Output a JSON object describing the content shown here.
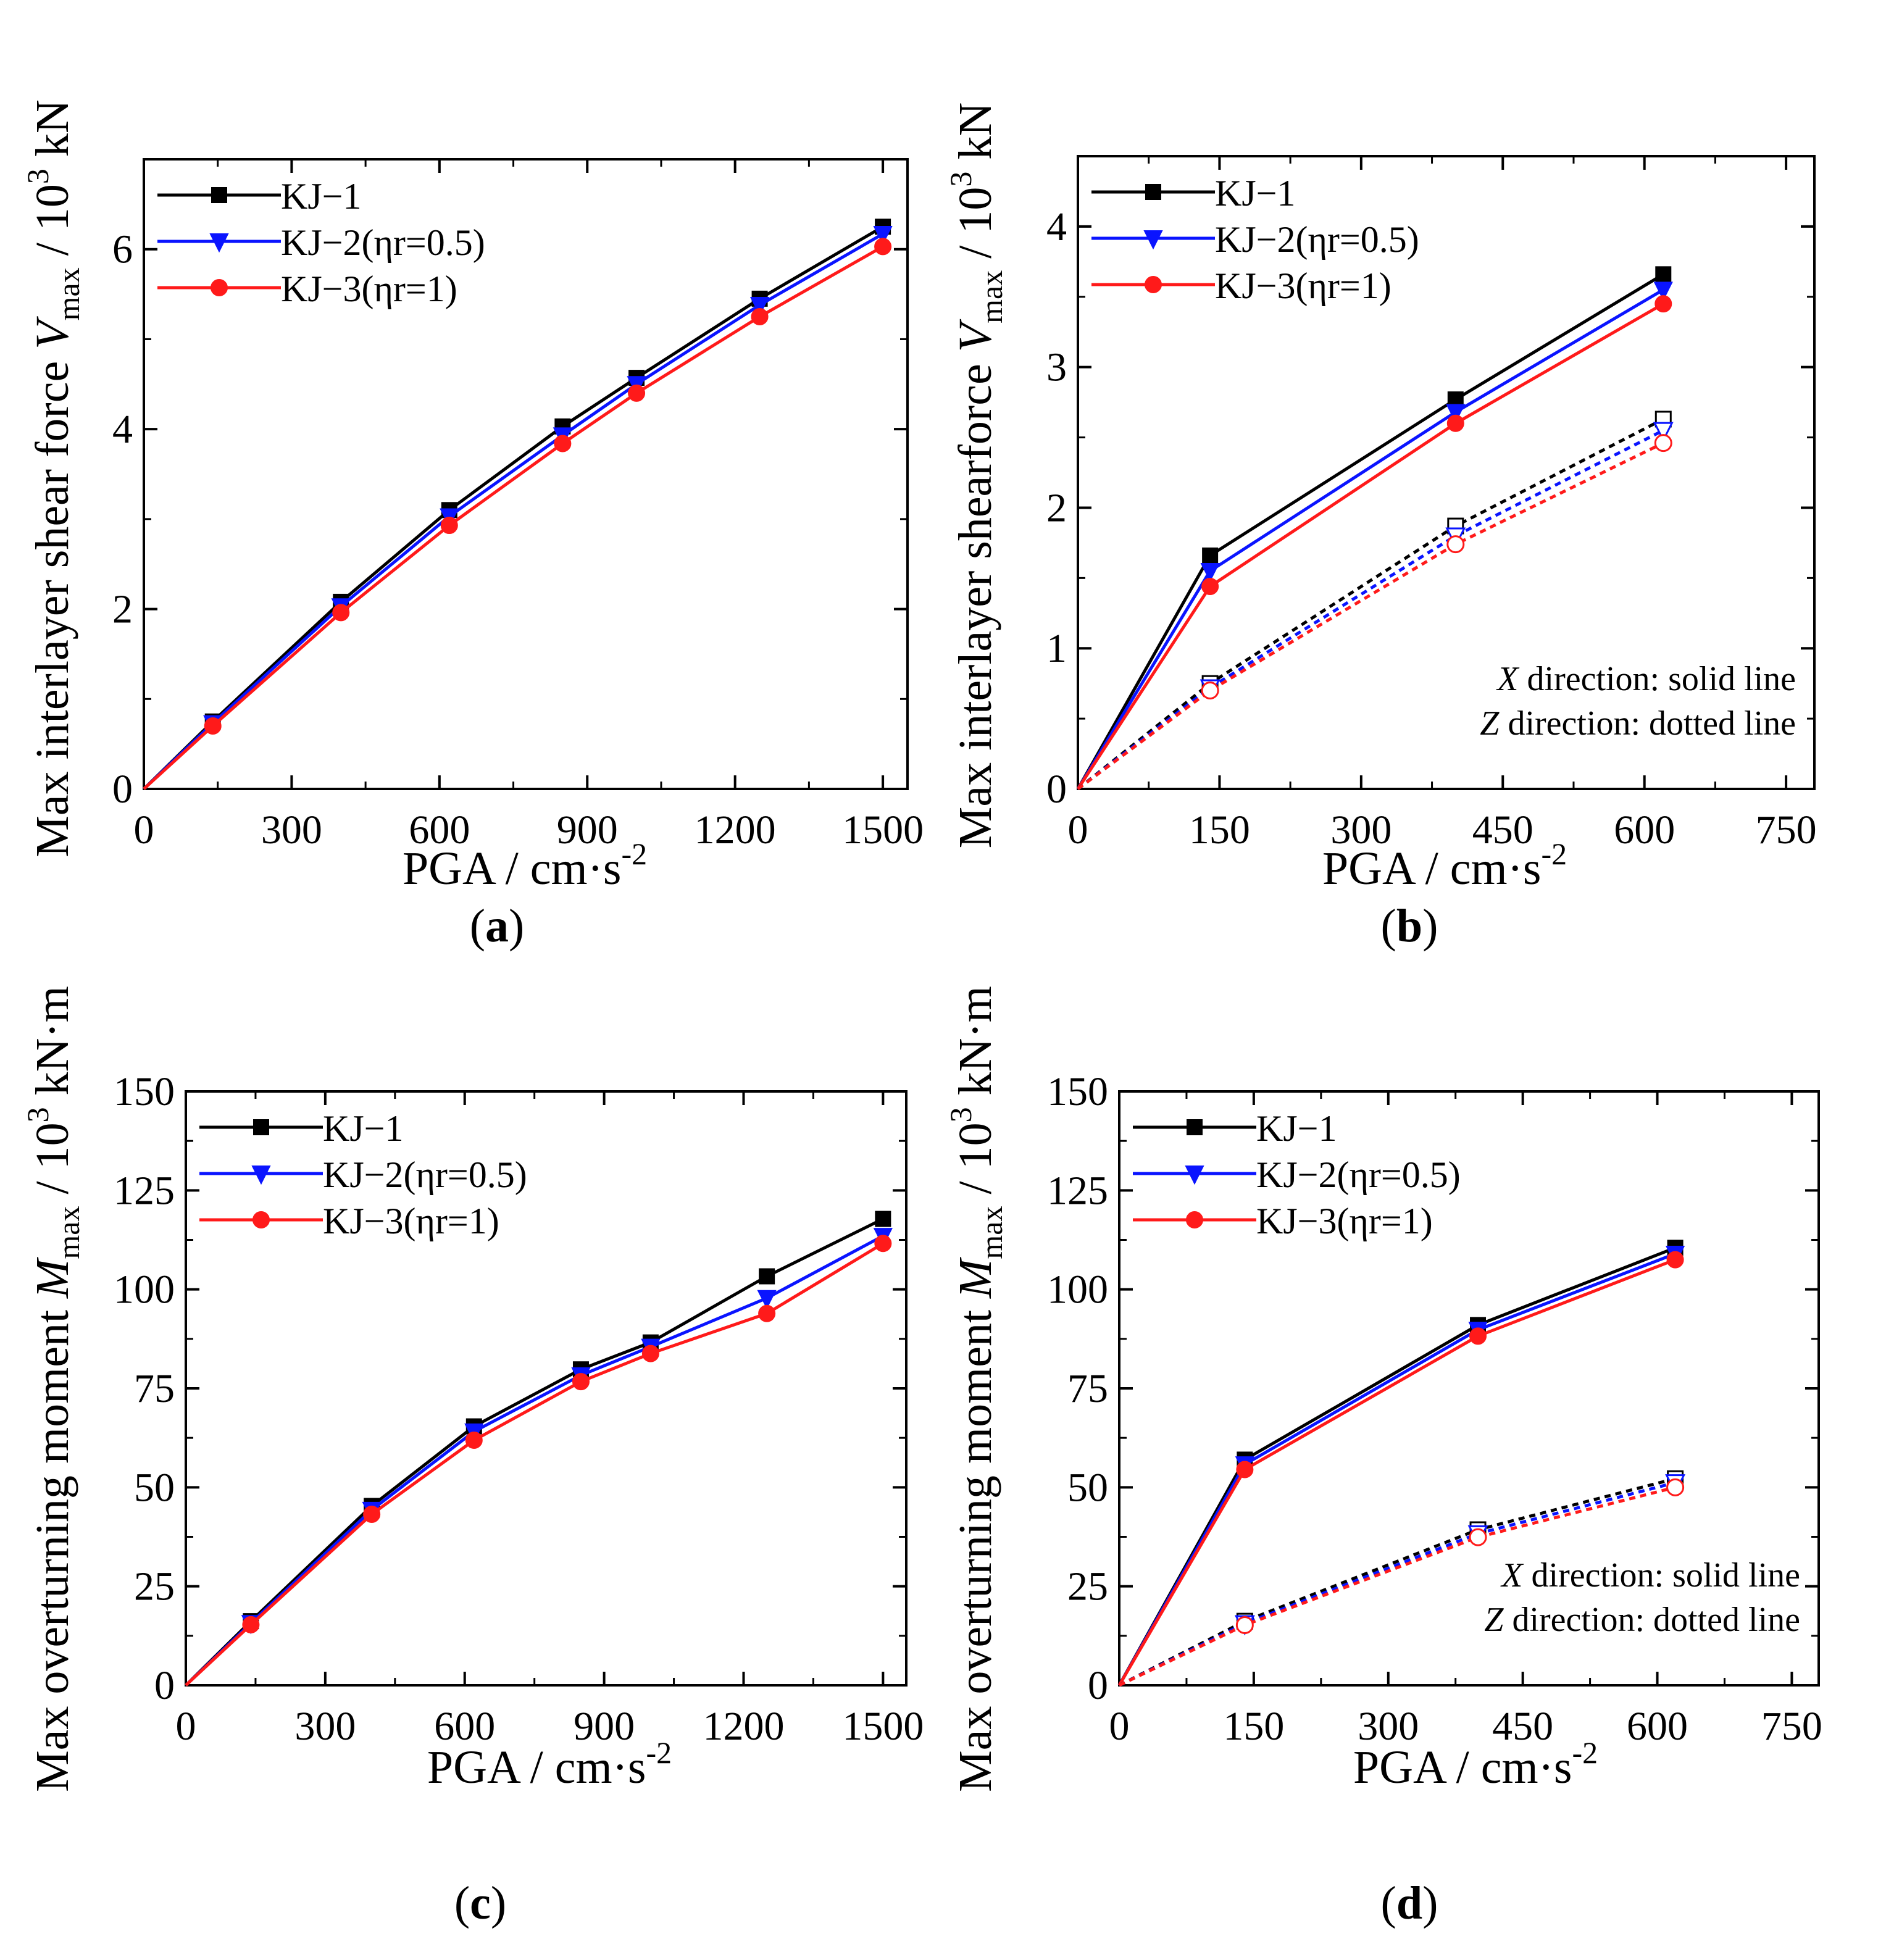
{
  "figure": {
    "colors": {
      "kj1": "#000000",
      "kj2": "#0a14ff",
      "kj3": "#ff1a1a",
      "axis": "#000000",
      "background": "#ffffff"
    },
    "legend_labels": [
      "KJ−1",
      "KJ−2(ηr=0.5)",
      "KJ−3(ηr=1)"
    ],
    "direction_note": {
      "x_var": "X",
      "x_text": " direction: solid line",
      "z_var": "Z",
      "z_text": " direction: dotted line"
    }
  },
  "chart_data": [
    {
      "id": "a",
      "panel_label": "a",
      "type": "line",
      "xlabel": "PGA / cm·s",
      "xlabel_sup": "-2",
      "ylabel": "Max interlayer shear force ",
      "ylabel_var": "V",
      "ylabel_sub": "max",
      "ylabel_unit": " / 10",
      "ylabel_unit_sup": "3",
      "ylabel_unit_tail": " kN",
      "xlim": [
        0,
        1550
      ],
      "ylim": [
        0,
        7
      ],
      "xticks": [
        0,
        300,
        600,
        900,
        1200,
        1500
      ],
      "yticks": [
        0,
        2,
        4,
        6
      ],
      "xticks_minor": [
        150,
        450,
        750,
        1050,
        1350
      ],
      "yticks_minor": [
        1,
        3,
        5,
        7
      ],
      "series": [
        {
          "name": "KJ−1",
          "color": "#000000",
          "marker": "square",
          "dash": false,
          "x": [
            0,
            140,
            400,
            620,
            850,
            1000,
            1250,
            1500
          ],
          "y": [
            0,
            0.75,
            2.08,
            3.1,
            4.03,
            4.57,
            5.45,
            6.25
          ]
        },
        {
          "name": "KJ−2(ηr=0.5)",
          "color": "#0a14ff",
          "marker": "triangle-down",
          "dash": false,
          "x": [
            0,
            140,
            400,
            620,
            850,
            1000,
            1250,
            1500
          ],
          "y": [
            0,
            0.73,
            2.03,
            3.03,
            3.93,
            4.5,
            5.38,
            6.17
          ]
        },
        {
          "name": "KJ−3(ηr=1)",
          "color": "#ff1a1a",
          "marker": "circle",
          "dash": false,
          "x": [
            0,
            140,
            400,
            620,
            850,
            1000,
            1250,
            1500
          ],
          "y": [
            0,
            0.7,
            1.96,
            2.93,
            3.84,
            4.4,
            5.25,
            6.03
          ]
        }
      ]
    },
    {
      "id": "b",
      "panel_label": "b",
      "type": "line",
      "xlabel": "PGA / cm·s",
      "xlabel_sup": "-2",
      "ylabel": "Max interlayer shearforce ",
      "ylabel_var": "V",
      "ylabel_sub": "max",
      "ylabel_unit": " / 10",
      "ylabel_unit_sup": "3",
      "ylabel_unit_tail": " kN",
      "xlim": [
        0,
        780
      ],
      "ylim": [
        0,
        4.5
      ],
      "xticks": [
        0,
        150,
        300,
        450,
        600,
        750
      ],
      "yticks": [
        0,
        1,
        2,
        3,
        4
      ],
      "xticks_minor": [
        75,
        225,
        375,
        525,
        675
      ],
      "yticks_minor": [
        0.5,
        1.5,
        2.5,
        3.5,
        4.5
      ],
      "show_note": true,
      "series": [
        {
          "name": "KJ−1",
          "color": "#000000",
          "marker": "square",
          "dash": false,
          "x": [
            0,
            140,
            400,
            620
          ],
          "y": [
            0,
            1.66,
            2.77,
            3.66
          ]
        },
        {
          "name": "KJ−2(ηr=0.5)",
          "color": "#0a14ff",
          "marker": "triangle-down",
          "dash": false,
          "x": [
            0,
            140,
            400,
            620
          ],
          "y": [
            0,
            1.55,
            2.68,
            3.55
          ]
        },
        {
          "name": "KJ−3(ηr=1)",
          "color": "#ff1a1a",
          "marker": "circle",
          "dash": false,
          "x": [
            0,
            140,
            400,
            620
          ],
          "y": [
            0,
            1.44,
            2.6,
            3.45
          ]
        },
        {
          "name": "KJ−1 Z",
          "color": "#000000",
          "marker": "square",
          "dash": true,
          "open": true,
          "x": [
            0,
            140,
            400,
            620
          ],
          "y": [
            0,
            0.75,
            1.87,
            2.63
          ]
        },
        {
          "name": "KJ−2(ηr=0.5) Z",
          "color": "#0a14ff",
          "marker": "triangle-down",
          "dash": true,
          "open": true,
          "x": [
            0,
            140,
            400,
            620
          ],
          "y": [
            0,
            0.72,
            1.8,
            2.55
          ]
        },
        {
          "name": "KJ−3(ηr=1) Z",
          "color": "#ff1a1a",
          "marker": "circle",
          "dash": true,
          "open": true,
          "x": [
            0,
            140,
            400,
            620
          ],
          "y": [
            0,
            0.7,
            1.74,
            2.46
          ]
        }
      ]
    },
    {
      "id": "c",
      "panel_label": "c",
      "type": "line",
      "xlabel": "PGA / cm·s",
      "xlabel_sup": "-2",
      "ylabel": "Max overturning moment ",
      "ylabel_var": "M",
      "ylabel_sub": "max",
      "ylabel_unit": " / 10",
      "ylabel_unit_sup": "3",
      "ylabel_unit_tail": " kN·m",
      "xlim": [
        0,
        1550
      ],
      "ylim": [
        0,
        150
      ],
      "xticks": [
        0,
        300,
        600,
        900,
        1200,
        1500
      ],
      "yticks": [
        0,
        25,
        50,
        75,
        100,
        125,
        150
      ],
      "xticks_minor": [
        150,
        450,
        750,
        1050,
        1350
      ],
      "yticks_minor": [
        12.5,
        37.5,
        62.5,
        87.5,
        112.5,
        137.5
      ],
      "series": [
        {
          "name": "KJ−1",
          "color": "#000000",
          "marker": "square",
          "dash": false,
          "x": [
            0,
            140,
            400,
            620,
            850,
            1000,
            1250,
            1500
          ],
          "y": [
            0,
            16.2,
            45.3,
            65.4,
            79.8,
            86.6,
            103.3,
            117.8
          ]
        },
        {
          "name": "KJ−2(ηr=0.5)",
          "color": "#0a14ff",
          "marker": "triangle-down",
          "dash": false,
          "x": [
            0,
            140,
            400,
            620,
            850,
            1000,
            1250,
            1500
          ],
          "y": [
            0,
            15.7,
            44.3,
            64.1,
            78.3,
            85.5,
            97.8,
            113.5
          ]
        },
        {
          "name": "KJ−3(ηr=1)",
          "color": "#ff1a1a",
          "marker": "circle",
          "dash": false,
          "x": [
            0,
            140,
            400,
            620,
            850,
            1000,
            1250,
            1500
          ],
          "y": [
            0,
            15.3,
            43.2,
            61.9,
            76.7,
            83.8,
            93.9,
            111.6
          ]
        }
      ]
    },
    {
      "id": "d",
      "panel_label": "d",
      "type": "line",
      "xlabel": "PGA / cm·s",
      "xlabel_sup": "-2",
      "ylabel": "Max overturning moment ",
      "ylabel_var": "M",
      "ylabel_sub": "max",
      "ylabel_unit": " / 10",
      "ylabel_unit_sup": "3",
      "ylabel_unit_tail": " kN·m",
      "xlim": [
        0,
        780
      ],
      "ylim": [
        0,
        150
      ],
      "xticks": [
        0,
        150,
        300,
        450,
        600,
        750
      ],
      "yticks": [
        0,
        25,
        50,
        75,
        100,
        125,
        150
      ],
      "xticks_minor": [
        75,
        225,
        375,
        525,
        675
      ],
      "yticks_minor": [
        12.5,
        37.5,
        62.5,
        87.5,
        112.5,
        137.5
      ],
      "show_note": true,
      "series": [
        {
          "name": "KJ−1",
          "color": "#000000",
          "marker": "square",
          "dash": false,
          "x": [
            0,
            140,
            400,
            620
          ],
          "y": [
            0,
            57.0,
            91.0,
            110.5
          ]
        },
        {
          "name": "KJ−2(ηr=0.5)",
          "color": "#0a14ff",
          "marker": "triangle-down",
          "dash": false,
          "x": [
            0,
            140,
            400,
            620
          ],
          "y": [
            0,
            55.8,
            89.8,
            109.0
          ]
        },
        {
          "name": "KJ−3(ηr=1)",
          "color": "#ff1a1a",
          "marker": "circle",
          "dash": false,
          "x": [
            0,
            140,
            400,
            620
          ],
          "y": [
            0,
            54.5,
            88.2,
            107.5
          ]
        },
        {
          "name": "KJ−1 Z",
          "color": "#000000",
          "marker": "square",
          "dash": true,
          "open": true,
          "x": [
            0,
            140,
            400,
            620
          ],
          "y": [
            0,
            16.2,
            39.3,
            52.2
          ]
        },
        {
          "name": "KJ−2(ηr=0.5) Z",
          "color": "#0a14ff",
          "marker": "triangle-down",
          "dash": true,
          "open": true,
          "x": [
            0,
            140,
            400,
            620
          ],
          "y": [
            0,
            15.6,
            38.3,
            51.2
          ]
        },
        {
          "name": "KJ−3(ηr=1) Z",
          "color": "#ff1a1a",
          "marker": "circle",
          "dash": true,
          "open": true,
          "x": [
            0,
            140,
            400,
            620
          ],
          "y": [
            0,
            15.2,
            37.4,
            50.0
          ]
        }
      ]
    }
  ]
}
